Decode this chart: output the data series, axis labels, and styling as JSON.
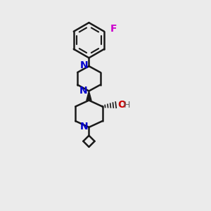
{
  "bg_color": "#EBEBEB",
  "bond_color": "#1a1a1a",
  "N_color": "#0000CC",
  "O_color": "#CC0000",
  "F_color": "#CC00CC",
  "H_color": "#666666",
  "line_width": 1.8,
  "figsize": [
    3.0,
    3.0
  ],
  "dpi": 100,
  "xlim": [
    0,
    1
  ],
  "ylim": [
    0,
    1
  ]
}
